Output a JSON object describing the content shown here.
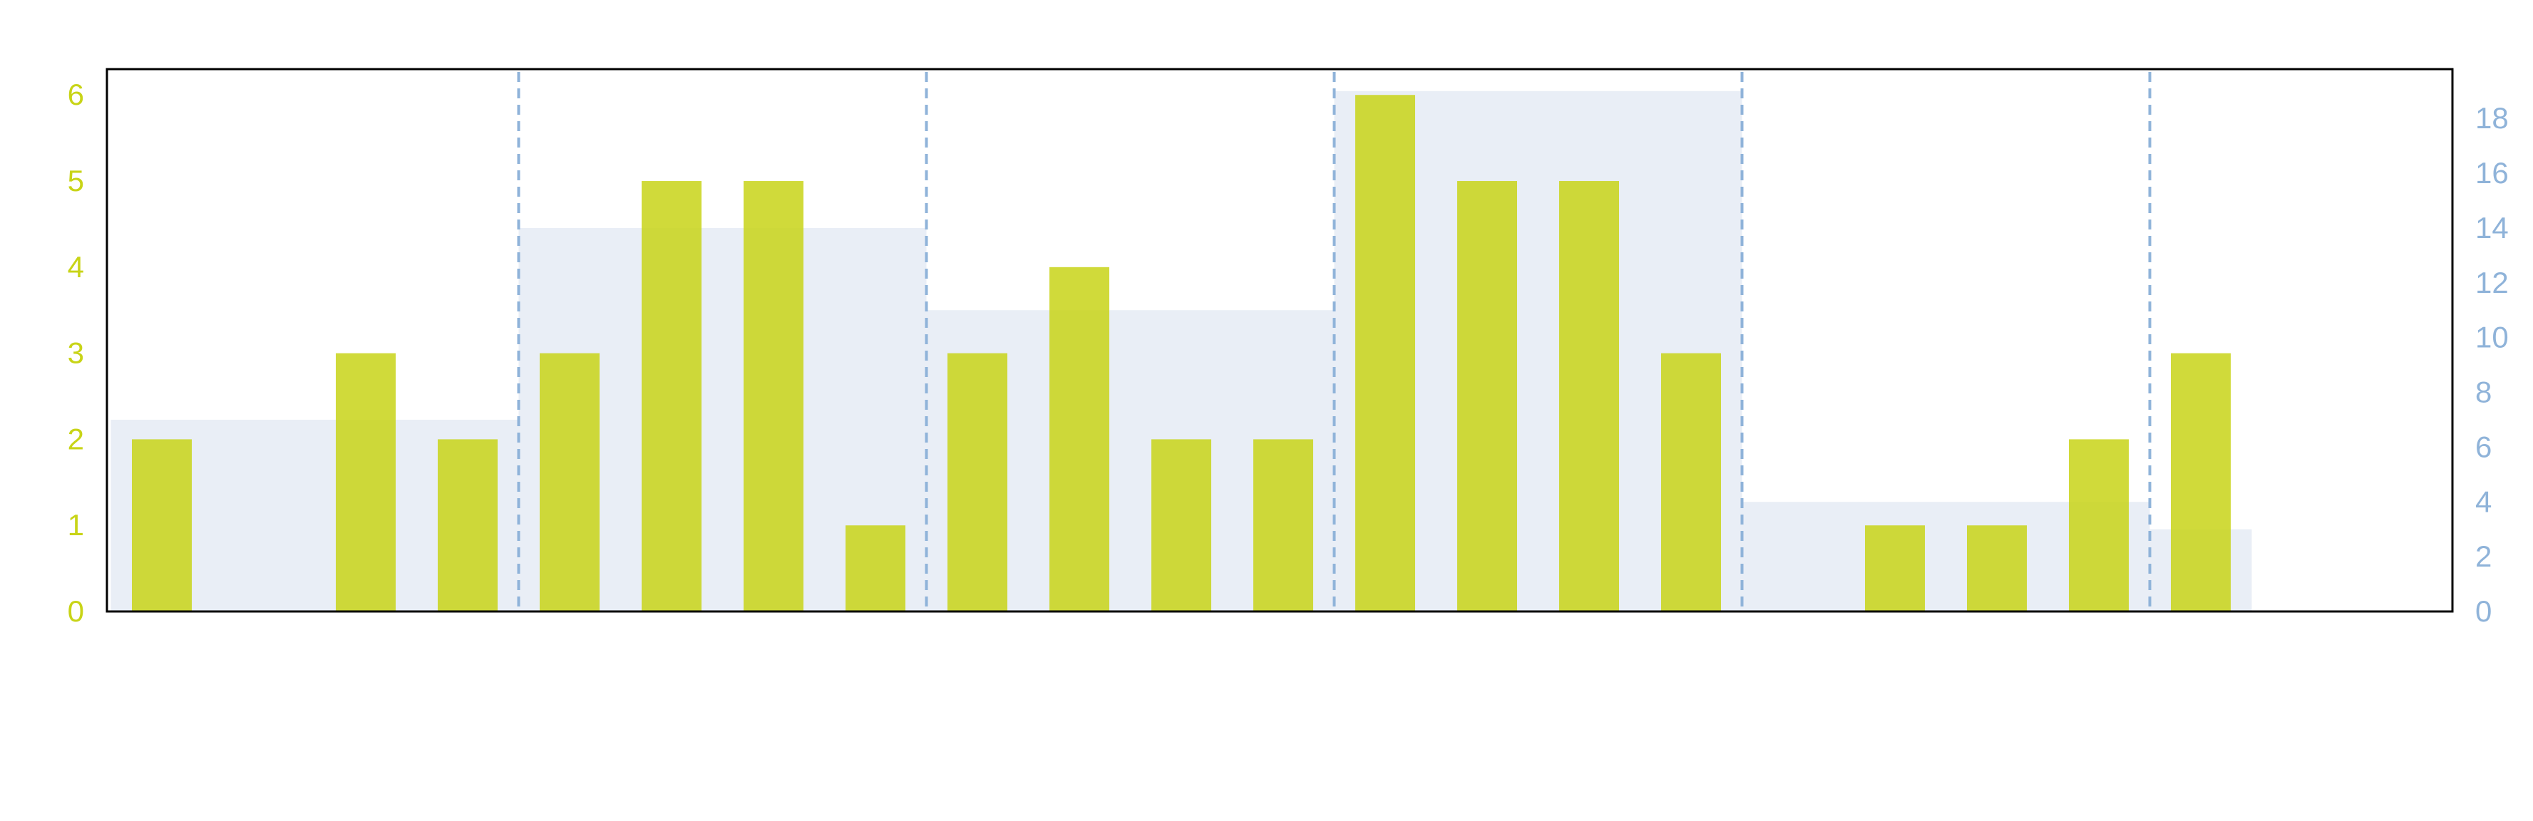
{
  "chart_data": {
    "type": "bar",
    "title": "",
    "xlabel": "",
    "ylabel": "",
    "ylabel_right": "",
    "series": [
      {
        "axis": "left",
        "color": "#c8d417",
        "values": [
          2,
          0,
          3,
          2,
          3,
          5,
          5,
          1,
          3,
          4,
          2,
          2,
          6,
          5,
          5,
          3,
          0,
          1,
          1,
          2,
          3
        ]
      }
    ],
    "group_series": [
      {
        "axis": "right",
        "color": "#e8edf5",
        "groups": [
          {
            "start": 0,
            "end": 4,
            "value": 7
          },
          {
            "start": 4,
            "end": 8,
            "value": 14
          },
          {
            "start": 8,
            "end": 12,
            "value": 11
          },
          {
            "start": 12,
            "end": 16,
            "value": 19
          },
          {
            "start": 16,
            "end": 20,
            "value": 4
          },
          {
            "start": 20,
            "end": 21,
            "value": 3
          }
        ]
      }
    ],
    "group_boundaries": [
      4,
      8,
      12,
      16,
      20
    ],
    "ylim": [
      0,
      6.3
    ],
    "ylim_right": [
      0,
      19.8
    ],
    "yticks": [
      "0",
      "1",
      "2",
      "3",
      "4",
      "5",
      "6"
    ],
    "yticks_right": [
      "0",
      "2",
      "4",
      "6",
      "8",
      "10",
      "12",
      "14",
      "16",
      "18"
    ],
    "left_axis_color": "#c8d417",
    "right_axis_color": "#8fb3d9",
    "divider_color": "#8fb3d9",
    "grid": false,
    "legend": "none"
  }
}
